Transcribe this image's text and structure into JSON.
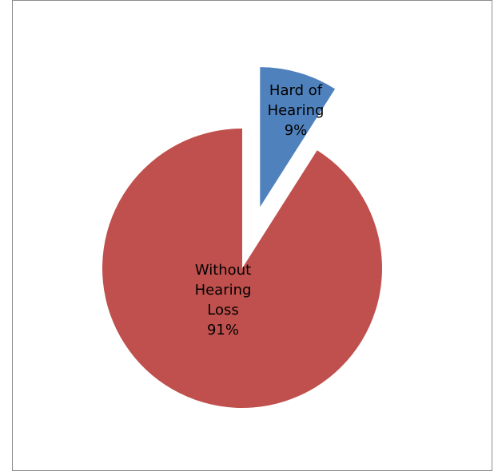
{
  "chart_data": {
    "type": "pie",
    "title": "",
    "legend": "none",
    "slices": [
      {
        "name": "Hard of Hearing",
        "value": 9,
        "label_lines": [
          "Hard of",
          "Hearing",
          "9%"
        ],
        "color": "#4f81bd",
        "exploded": true
      },
      {
        "name": "Without Hearing Loss",
        "value": 91,
        "label_lines": [
          "Without",
          "Hearing",
          "Loss",
          "91%"
        ],
        "color": "#c0504d",
        "exploded": false
      }
    ]
  }
}
